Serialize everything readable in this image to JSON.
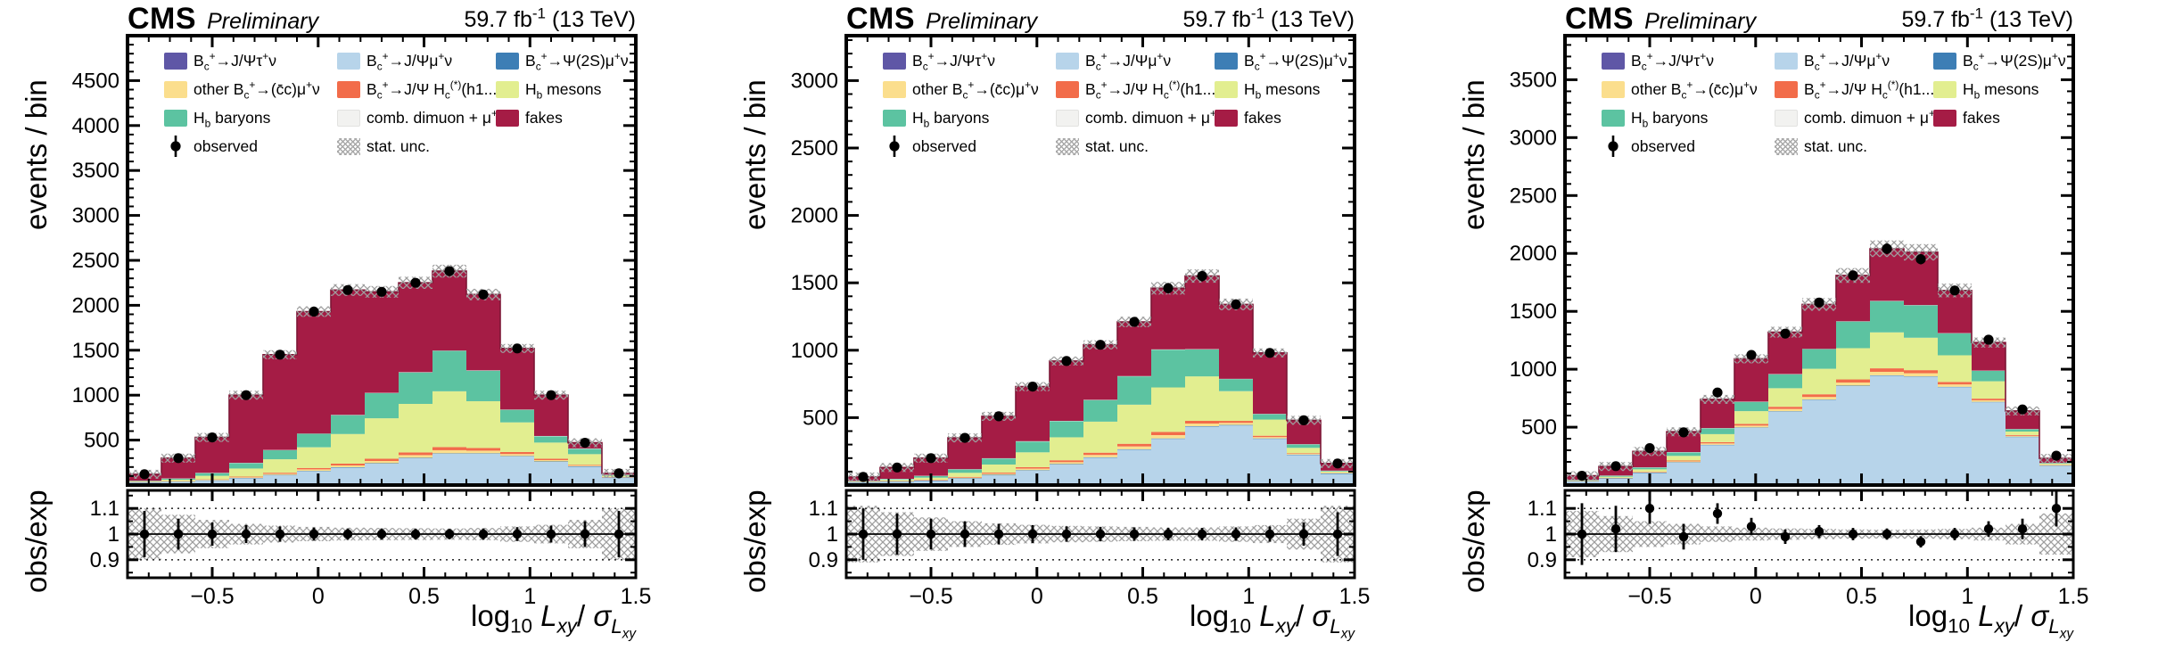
{
  "header": {
    "experiment": "CMS",
    "preliminary": "Preliminary",
    "lumi": "59.7 fb^{-1} (13 TeV)"
  },
  "axes": {
    "y_main_label": "events / bin",
    "y_ratio_label": "obs/exp",
    "x_label": "log_{10} *L_{xy}*/ *σ*_{*L_{xy}*}",
    "x_ticks": [
      -0.5,
      0,
      0.5,
      1,
      1.5
    ],
    "x_tick_labels": [
      "−0.5",
      "0",
      "0.5",
      "1",
      "1.5"
    ],
    "ratio_ticks": [
      0.9,
      1,
      1.1
    ],
    "ratio_tick_labels": [
      "0.9",
      "1",
      "1.1"
    ]
  },
  "legend": {
    "entries": [
      {
        "name": "jpsi_tau",
        "color": "#5F57A6",
        "label": "B_{c}^{+}→J/Ψτ^{+}ν"
      },
      {
        "name": "jpsi_mu",
        "color": "#B7D4EA",
        "label": "B_{c}^{+}→J/Ψμ^{+}ν"
      },
      {
        "name": "psi2s",
        "color": "#3D7EB5",
        "label": "B_{c}^{+}→Ψ(2S)μ^{+}ν"
      },
      {
        "name": "other_ccbar",
        "color": "#FBDE8D",
        "label": "other B_{c}^{+}→(c̄c)μ^{+}ν"
      },
      {
        "name": "jpsi_hc",
        "color": "#F26C4A",
        "label": "B_{c}^{+}→J/Ψ H_{c}^{(*)}(h1...)"
      },
      {
        "name": "hb_mesons",
        "color": "#E2EE90",
        "label": "H_{b} mesons"
      },
      {
        "name": "hb_baryons",
        "color": "#5CC3A1",
        "label": "H_{b} baryons"
      },
      {
        "name": "comb",
        "color": "#F2F2F0",
        "label": "comb. dimuon + μ^{+}"
      },
      {
        "name": "fakes",
        "color": "#A51C45",
        "label": "fakes"
      }
    ],
    "observed_label": "observed",
    "stat_label": "stat. unc."
  },
  "colors": {
    "hatch": "#9E9E9E",
    "frame": "#000000",
    "observed": "#000000",
    "stack_outline": "#7D1636"
  },
  "chart_data": [
    {
      "type": "bar",
      "subtype": "stacked-histogram-with-ratio",
      "xlabel": "log10 Lxy/sigma_Lxy",
      "ylabel": "events / bin",
      "bins": {
        "xmin": -0.9,
        "xmax": 1.5,
        "n": 15
      },
      "ylim": [
        0,
        5000
      ],
      "y_tick_step": 500,
      "y_minor_step": 100,
      "stat_frac": 0.03,
      "series": [
        {
          "name": "jpsi_tau",
          "values": [
            18,
            18,
            18,
            18,
            18,
            18,
            18,
            18,
            18,
            18,
            18,
            18,
            18,
            18,
            18
          ]
        },
        {
          "name": "jpsi_mu",
          "values": [
            8,
            15,
            30,
            55,
            90,
            135,
            175,
            220,
            280,
            330,
            330,
            300,
            240,
            185,
            60
          ]
        },
        {
          "name": "psi2s",
          "values": [
            5,
            5,
            5,
            5,
            5,
            5,
            5,
            5,
            5,
            5,
            5,
            5,
            5,
            5,
            5
          ]
        },
        {
          "name": "other_ccbar",
          "values": [
            2,
            3,
            5,
            8,
            12,
            16,
            20,
            25,
            30,
            35,
            30,
            22,
            15,
            8,
            3
          ]
        },
        {
          "name": "jpsi_hc",
          "values": [
            2,
            3,
            5,
            8,
            12,
            16,
            20,
            25,
            30,
            35,
            30,
            22,
            15,
            8,
            3
          ]
        },
        {
          "name": "hb_mesons",
          "values": [
            5,
            15,
            40,
            90,
            150,
            230,
            330,
            450,
            540,
            620,
            520,
            330,
            180,
            120,
            15
          ]
        },
        {
          "name": "hb_baryons",
          "values": [
            5,
            12,
            30,
            60,
            100,
            150,
            210,
            280,
            350,
            450,
            340,
            140,
            70,
            60,
            8
          ]
        },
        {
          "name": "comb",
          "values": [
            3,
            3,
            3,
            3,
            3,
            3,
            3,
            3,
            3,
            3,
            3,
            3,
            3,
            3,
            3
          ]
        },
        {
          "name": "fakes",
          "values": [
            72,
            226,
            394,
            753,
            1060,
            1357,
            1389,
            1124,
            994,
            884,
            844,
            680,
            454,
            63,
            15
          ]
        }
      ],
      "observed": [
        120,
        300,
        530,
        1000,
        1450,
        1930,
        2170,
        2150,
        2250,
        2380,
        2120,
        1520,
        1000,
        470,
        130
      ],
      "ratio": [
        1,
        1,
        1,
        1,
        1,
        1,
        1,
        1,
        1,
        1,
        1,
        1,
        1,
        1,
        1
      ],
      "ratio_err": [
        0.09,
        0.06,
        0.045,
        0.035,
        0.03,
        0.025,
        0.022,
        0.022,
        0.021,
        0.02,
        0.022,
        0.027,
        0.033,
        0.05,
        0.09
      ],
      "stat_band": [
        0.1,
        0.075,
        0.055,
        0.04,
        0.033,
        0.028,
        0.025,
        0.024,
        0.023,
        0.022,
        0.024,
        0.03,
        0.036,
        0.055,
        0.1
      ]
    },
    {
      "type": "bar",
      "subtype": "stacked-histogram-with-ratio",
      "xlabel": "log10 Lxy/sigma_Lxy",
      "ylabel": "events / bin",
      "bins": {
        "xmin": -0.9,
        "xmax": 1.5,
        "n": 15
      },
      "ylim": [
        0,
        3333
      ],
      "y_tick_step": 500,
      "y_minor_step": 100,
      "stat_frac": 0.032,
      "series": [
        {
          "name": "jpsi_tau",
          "values": [
            12,
            12,
            12,
            12,
            12,
            12,
            12,
            12,
            12,
            12,
            12,
            12,
            12,
            12,
            12
          ]
        },
        {
          "name": "jpsi_mu",
          "values": [
            5,
            10,
            18,
            35,
            60,
            95,
            140,
            190,
            250,
            330,
            420,
            430,
            330,
            210,
            70
          ]
        },
        {
          "name": "psi2s",
          "values": [
            4,
            4,
            4,
            4,
            4,
            4,
            4,
            4,
            4,
            4,
            4,
            4,
            4,
            4,
            4
          ]
        },
        {
          "name": "other_ccbar",
          "values": [
            1,
            2,
            3,
            5,
            8,
            11,
            14,
            17,
            20,
            24,
            20,
            15,
            10,
            5,
            2
          ]
        },
        {
          "name": "jpsi_hc",
          "values": [
            1,
            2,
            3,
            5,
            8,
            11,
            14,
            17,
            20,
            24,
            20,
            15,
            10,
            5,
            2
          ]
        },
        {
          "name": "hb_mesons",
          "values": [
            3,
            8,
            15,
            30,
            60,
            110,
            170,
            230,
            290,
            330,
            330,
            220,
            120,
            40,
            10
          ]
        },
        {
          "name": "hb_baryons",
          "values": [
            3,
            6,
            12,
            25,
            45,
            80,
            120,
            160,
            210,
            280,
            200,
            90,
            40,
            25,
            5
          ]
        },
        {
          "name": "comb",
          "values": [
            2,
            2,
            2,
            2,
            2,
            2,
            2,
            2,
            2,
            2,
            2,
            2,
            2,
            2,
            2
          ]
        },
        {
          "name": "fakes",
          "values": [
            29,
            84,
            131,
            232,
            311,
            405,
            444,
            408,
            402,
            454,
            542,
            552,
            452,
            177,
            53
          ]
        }
      ],
      "observed": [
        60,
        130,
        200,
        350,
        510,
        730,
        920,
        1040,
        1210,
        1460,
        1550,
        1340,
        980,
        480,
        160
      ],
      "ratio": [
        1,
        1,
        1,
        1,
        1,
        1,
        1,
        1,
        1,
        1,
        1,
        1,
        1,
        1,
        1
      ],
      "ratio_err": [
        0.1,
        0.08,
        0.06,
        0.05,
        0.04,
        0.035,
        0.03,
        0.028,
        0.026,
        0.024,
        0.024,
        0.026,
        0.03,
        0.045,
        0.085
      ],
      "stat_band": [
        0.11,
        0.085,
        0.065,
        0.05,
        0.042,
        0.036,
        0.032,
        0.03,
        0.028,
        0.026,
        0.026,
        0.03,
        0.035,
        0.06,
        0.11
      ]
    },
    {
      "type": "bar",
      "subtype": "stacked-histogram-with-ratio",
      "xlabel": "log10 Lxy/sigma_Lxy",
      "ylabel": "events / bin",
      "bins": {
        "xmin": -0.9,
        "xmax": 1.5,
        "n": 15
      },
      "ylim": [
        0,
        3880
      ],
      "y_tick_step": 500,
      "y_minor_step": 100,
      "stat_frac": 0.035,
      "series": [
        {
          "name": "jpsi_tau",
          "values": [
            14,
            14,
            14,
            14,
            14,
            14,
            14,
            14,
            14,
            14,
            14,
            14,
            14,
            14,
            14
          ]
        },
        {
          "name": "jpsi_mu",
          "values": [
            15,
            40,
            90,
            180,
            330,
            480,
            620,
            720,
            840,
            930,
            920,
            830,
            700,
            400,
            150
          ]
        },
        {
          "name": "psi2s",
          "values": [
            4,
            4,
            4,
            4,
            4,
            4,
            4,
            4,
            4,
            4,
            4,
            4,
            4,
            4,
            4
          ]
        },
        {
          "name": "other_ccbar",
          "values": [
            1,
            2,
            4,
            7,
            11,
            15,
            19,
            23,
            27,
            30,
            27,
            21,
            14,
            7,
            3
          ]
        },
        {
          "name": "jpsi_hc",
          "values": [
            1,
            2,
            4,
            7,
            11,
            15,
            19,
            23,
            27,
            30,
            27,
            21,
            14,
            7,
            3
          ]
        },
        {
          "name": "hb_mesons",
          "values": [
            4,
            10,
            20,
            40,
            70,
            110,
            160,
            220,
            270,
            310,
            280,
            230,
            150,
            30,
            10
          ]
        },
        {
          "name": "hb_baryons",
          "values": [
            3,
            8,
            15,
            30,
            50,
            80,
            120,
            170,
            230,
            270,
            280,
            190,
            90,
            20,
            5
          ]
        },
        {
          "name": "comb",
          "values": [
            2,
            2,
            2,
            2,
            2,
            2,
            2,
            2,
            2,
            2,
            2,
            2,
            2,
            2,
            2
          ]
        },
        {
          "name": "fakes",
          "values": [
            36,
            78,
            137,
            176,
            248,
            370,
            362,
            384,
            396,
            450,
            456,
            368,
            242,
            156,
            39
          ]
        }
      ],
      "observed": [
        80,
        163,
        319,
        455,
        799,
        1123,
        1307,
        1576,
        1810,
        2040,
        1950,
        1680,
        1255,
        653,
        253
      ],
      "ratio": [
        1,
        1.02,
        1.1,
        0.99,
        1.08,
        1.03,
        0.99,
        1.01,
        1,
        1,
        0.97,
        1,
        1.02,
        1.02,
        1.1
      ],
      "ratio_err": [
        0.12,
        0.09,
        0.06,
        0.05,
        0.04,
        0.033,
        0.028,
        0.025,
        0.024,
        0.022,
        0.022,
        0.024,
        0.03,
        0.04,
        0.07
      ],
      "stat_band": [
        0.09,
        0.07,
        0.05,
        0.04,
        0.03,
        0.025,
        0.022,
        0.02,
        0.018,
        0.017,
        0.018,
        0.02,
        0.025,
        0.04,
        0.08
      ]
    }
  ]
}
